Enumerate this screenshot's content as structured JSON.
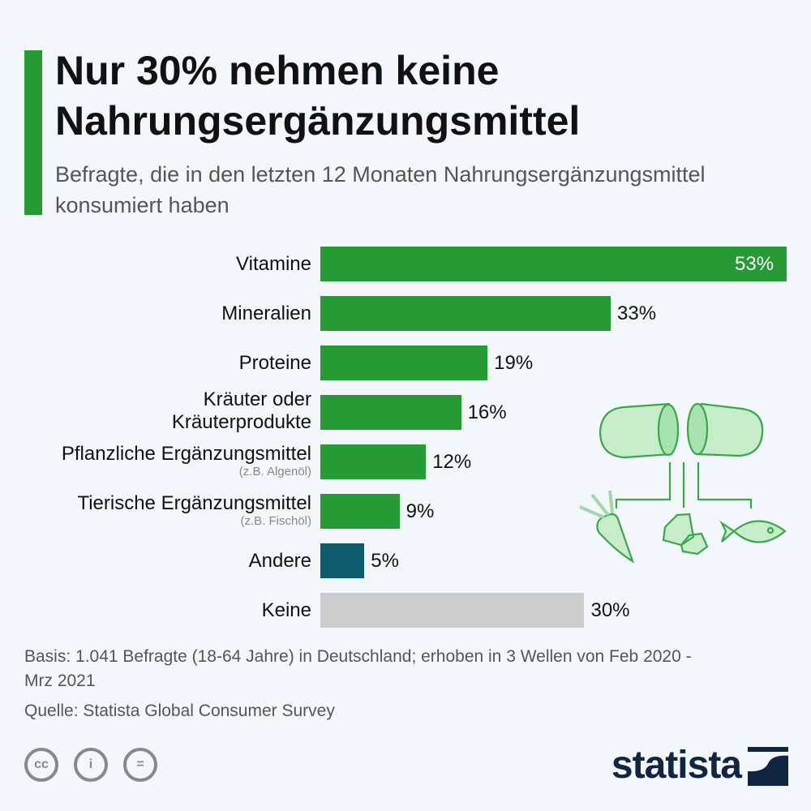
{
  "header": {
    "title": "Nur 30% nehmen keine Nahrungsergänzungsmittel",
    "subtitle": "Befragte, die in den letzten 12 Monaten Nahrungsergänzungsmittel konsumiert haben"
  },
  "chart_data": {
    "type": "bar",
    "orientation": "horizontal",
    "categories": [
      {
        "label": "Vitamine",
        "note": ""
      },
      {
        "label": "Mineralien",
        "note": ""
      },
      {
        "label": "Proteine",
        "note": ""
      },
      {
        "label": "Kräuter oder Kräuterprodukte",
        "note": ""
      },
      {
        "label": "Pflanzliche Ergänzungsmittel",
        "note": "(z.B. Algenöl)"
      },
      {
        "label": "Tierische Ergänzungsmittel",
        "note": "(z.B. Fischöl)"
      },
      {
        "label": "Andere",
        "note": ""
      },
      {
        "label": "Keine",
        "note": ""
      }
    ],
    "values": [
      53,
      33,
      19,
      16,
      12,
      9,
      5,
      30
    ],
    "value_labels": [
      "53%",
      "33%",
      "19%",
      "16%",
      "12%",
      "9%",
      "5%",
      "30%"
    ],
    "colors": [
      "#259a35",
      "#259a35",
      "#259a35",
      "#259a35",
      "#259a35",
      "#259a35",
      "#0e5c6b",
      "#cccccc"
    ],
    "xlim": [
      0,
      53
    ],
    "grid": false,
    "unit": "%"
  },
  "footer": {
    "basis": "Basis: 1.041 Befragte (18-64 Jahre) in Deutschland; erhoben in 3 Wellen von Feb 2020 - Mrz 2021",
    "source": "Quelle: Statista Global Consumer Survey",
    "license_icons": [
      "cc-icon",
      "by-icon",
      "nd-icon"
    ],
    "logo": "statista"
  },
  "colors": {
    "accent": "#259a35",
    "background": "#f3f6fa",
    "logo": "#0f2540"
  }
}
